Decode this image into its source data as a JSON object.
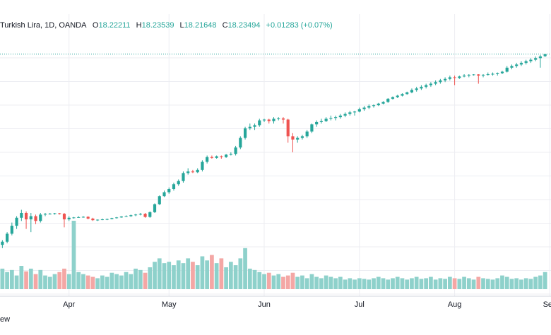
{
  "legend": {
    "symbol": "Turkish Lira, 1D, OANDA",
    "open_label": "O",
    "open": "18.22211",
    "high_label": "H",
    "high": "18.23539",
    "low_label": "L",
    "low": "18.21648",
    "close_label": "C",
    "close": "18.23494",
    "change": "+0.01283 (+0.07%)"
  },
  "brand_text": "ew",
  "colors": {
    "up": "#26a69a",
    "down": "#ef5350",
    "vol_up": "#8ed1cb",
    "vol_down": "#f4a7a5",
    "grid": "#ecedf2",
    "last_line": "#26a69a"
  },
  "chart_data": {
    "type": "candlestick",
    "title": "Turkish Lira, 1D, OANDA",
    "x_labels": [
      "Apr",
      "May",
      "Jun",
      "Jul",
      "Aug",
      "Sep"
    ],
    "x_label_index": [
      14,
      35,
      55,
      75,
      95,
      115
    ],
    "price_range": [
      17.05,
      18.3
    ],
    "volume_max": 100,
    "last_price": 18.23494,
    "candles": [
      [
        17.04,
        17.07,
        17.02,
        17.06,
        30
      ],
      [
        17.06,
        17.12,
        17.05,
        17.11,
        25
      ],
      [
        17.11,
        17.18,
        17.1,
        17.16,
        28
      ],
      [
        17.16,
        17.22,
        17.14,
        17.21,
        20
      ],
      [
        17.21,
        17.26,
        17.19,
        17.24,
        34
      ],
      [
        17.24,
        17.25,
        17.14,
        17.2,
        26
      ],
      [
        17.2,
        17.24,
        17.12,
        17.22,
        30
      ],
      [
        17.22,
        17.23,
        17.17,
        17.19,
        22
      ],
      [
        17.19,
        17.24,
        17.18,
        17.23,
        28
      ],
      [
        17.23,
        17.24,
        17.22,
        17.235,
        20
      ],
      [
        17.235,
        17.24,
        17.23,
        17.236,
        18
      ],
      [
        17.236,
        17.24,
        17.23,
        17.238,
        22
      ],
      [
        17.238,
        17.24,
        17.23,
        17.235,
        25
      ],
      [
        17.235,
        17.24,
        17.15,
        17.2,
        30
      ],
      [
        17.2,
        17.22,
        17.19,
        17.21,
        22
      ],
      [
        17.21,
        17.215,
        17.205,
        17.212,
        100
      ],
      [
        17.212,
        17.22,
        17.21,
        17.214,
        25
      ],
      [
        17.214,
        17.22,
        17.21,
        17.216,
        22
      ],
      [
        17.216,
        17.22,
        17.2,
        17.205,
        20
      ],
      [
        17.205,
        17.21,
        17.19,
        17.195,
        18
      ],
      [
        17.195,
        17.2,
        17.19,
        17.198,
        16
      ],
      [
        17.198,
        17.205,
        17.195,
        17.2,
        20
      ],
      [
        17.2,
        17.205,
        17.195,
        17.202,
        18
      ],
      [
        17.202,
        17.21,
        17.2,
        17.208,
        24
      ],
      [
        17.208,
        17.215,
        17.205,
        17.212,
        22
      ],
      [
        17.212,
        17.22,
        17.21,
        17.218,
        20
      ],
      [
        17.218,
        17.225,
        17.215,
        17.22,
        25
      ],
      [
        17.22,
        17.23,
        17.215,
        17.226,
        22
      ],
      [
        17.226,
        17.235,
        17.22,
        17.23,
        30
      ],
      [
        17.23,
        17.24,
        17.225,
        17.235,
        28
      ],
      [
        17.235,
        17.24,
        17.21,
        17.215,
        24
      ],
      [
        17.215,
        17.25,
        17.21,
        17.245,
        32
      ],
      [
        17.245,
        17.3,
        17.24,
        17.295,
        40
      ],
      [
        17.295,
        17.35,
        17.29,
        17.345,
        45
      ],
      [
        17.345,
        17.38,
        17.34,
        17.37,
        38
      ],
      [
        17.37,
        17.4,
        17.36,
        17.39,
        40
      ],
      [
        17.39,
        17.43,
        17.38,
        17.42,
        35
      ],
      [
        17.42,
        17.45,
        17.41,
        17.44,
        42
      ],
      [
        17.44,
        17.5,
        17.43,
        17.49,
        38
      ],
      [
        17.49,
        17.52,
        17.48,
        17.5,
        45
      ],
      [
        17.5,
        17.51,
        17.49,
        17.495,
        40
      ],
      [
        17.495,
        17.52,
        17.49,
        17.51,
        35
      ],
      [
        17.51,
        17.57,
        17.5,
        17.56,
        48
      ],
      [
        17.56,
        17.6,
        17.55,
        17.59,
        42
      ],
      [
        17.59,
        17.6,
        17.58,
        17.585,
        50
      ],
      [
        17.585,
        17.6,
        17.58,
        17.595,
        38
      ],
      [
        17.595,
        17.6,
        17.58,
        17.59,
        45
      ],
      [
        17.59,
        17.61,
        17.585,
        17.605,
        32
      ],
      [
        17.605,
        17.62,
        17.6,
        17.61,
        40
      ],
      [
        17.61,
        17.66,
        17.6,
        17.65,
        35
      ],
      [
        17.65,
        17.72,
        17.64,
        17.71,
        45
      ],
      [
        17.71,
        17.78,
        17.7,
        17.77,
        60
      ],
      [
        17.77,
        17.8,
        17.76,
        17.78,
        30
      ],
      [
        17.78,
        17.8,
        17.76,
        17.79,
        28
      ],
      [
        17.79,
        17.83,
        17.78,
        17.82,
        25
      ],
      [
        17.82,
        17.83,
        17.81,
        17.825,
        22
      ],
      [
        17.825,
        17.83,
        17.8,
        17.815,
        24
      ],
      [
        17.815,
        17.84,
        17.8,
        17.83,
        20
      ],
      [
        17.83,
        17.84,
        17.82,
        17.832,
        22
      ],
      [
        17.832,
        17.84,
        17.8,
        17.825,
        18
      ],
      [
        17.825,
        17.83,
        17.68,
        17.72,
        20
      ],
      [
        17.72,
        17.74,
        17.62,
        17.7,
        24
      ],
      [
        17.7,
        17.72,
        17.68,
        17.71,
        18
      ],
      [
        17.71,
        17.73,
        17.7,
        17.72,
        20
      ],
      [
        17.72,
        17.76,
        17.71,
        17.75,
        16
      ],
      [
        17.75,
        17.8,
        17.74,
        17.795,
        22
      ],
      [
        17.795,
        17.82,
        17.78,
        17.81,
        18
      ],
      [
        17.81,
        17.83,
        17.8,
        17.815,
        16
      ],
      [
        17.815,
        17.84,
        17.81,
        17.83,
        20
      ],
      [
        17.83,
        17.85,
        17.82,
        17.835,
        18
      ],
      [
        17.835,
        17.85,
        17.82,
        17.84,
        16
      ],
      [
        17.84,
        17.86,
        17.83,
        17.85,
        18
      ],
      [
        17.85,
        17.87,
        17.84,
        17.86,
        14
      ],
      [
        17.86,
        17.88,
        17.85,
        17.87,
        16
      ],
      [
        17.87,
        17.88,
        17.85,
        17.875,
        14
      ],
      [
        17.875,
        17.9,
        17.87,
        17.89,
        16
      ],
      [
        17.89,
        17.91,
        17.88,
        17.9,
        15
      ],
      [
        17.9,
        17.92,
        17.89,
        17.91,
        14
      ],
      [
        17.91,
        17.92,
        17.9,
        17.915,
        16
      ],
      [
        17.915,
        17.93,
        17.91,
        17.925,
        18
      ],
      [
        17.925,
        17.94,
        17.92,
        17.935,
        16
      ],
      [
        17.935,
        17.96,
        17.93,
        17.955,
        14
      ],
      [
        17.955,
        17.97,
        17.95,
        17.965,
        16
      ],
      [
        17.965,
        17.98,
        17.96,
        17.975,
        18
      ],
      [
        17.975,
        17.99,
        17.97,
        17.985,
        16
      ],
      [
        17.985,
        18.0,
        17.98,
        17.995,
        14
      ],
      [
        17.995,
        18.02,
        17.99,
        18.01,
        16
      ],
      [
        18.01,
        18.03,
        18.0,
        18.02,
        18
      ],
      [
        18.02,
        18.04,
        18.01,
        18.03,
        15
      ],
      [
        18.03,
        18.05,
        18.02,
        18.04,
        16
      ],
      [
        18.04,
        18.06,
        18.03,
        18.05,
        18
      ],
      [
        18.05,
        18.07,
        18.04,
        18.06,
        14
      ],
      [
        18.06,
        18.08,
        18.05,
        18.07,
        16
      ],
      [
        18.07,
        18.09,
        18.06,
        18.08,
        15
      ],
      [
        18.08,
        18.1,
        18.07,
        18.09,
        18
      ],
      [
        18.09,
        18.1,
        18.04,
        18.085,
        16
      ],
      [
        18.085,
        18.1,
        18.08,
        18.095,
        15
      ],
      [
        18.095,
        18.11,
        18.09,
        18.1,
        18
      ],
      [
        18.1,
        18.11,
        18.09,
        18.105,
        16
      ],
      [
        18.105,
        18.11,
        18.1,
        18.108,
        14
      ],
      [
        18.108,
        18.11,
        18.05,
        18.1,
        18
      ],
      [
        18.1,
        18.11,
        18.09,
        18.105,
        16
      ],
      [
        18.105,
        18.12,
        18.1,
        18.11,
        15
      ],
      [
        18.11,
        18.12,
        18.1,
        18.112,
        14
      ],
      [
        18.112,
        18.12,
        18.1,
        18.115,
        16
      ],
      [
        18.115,
        18.13,
        18.11,
        18.125,
        20
      ],
      [
        18.125,
        18.16,
        18.12,
        18.15,
        18
      ],
      [
        18.15,
        18.17,
        18.14,
        18.16,
        15
      ],
      [
        18.16,
        18.18,
        18.15,
        18.17,
        16
      ],
      [
        18.17,
        18.19,
        18.16,
        18.18,
        14
      ],
      [
        18.18,
        18.2,
        18.17,
        18.19,
        16
      ],
      [
        18.19,
        18.21,
        18.18,
        18.2,
        15
      ],
      [
        18.2,
        18.22,
        18.19,
        18.21,
        18
      ],
      [
        18.21,
        18.23,
        18.15,
        18.22,
        20
      ],
      [
        18.22211,
        18.23539,
        18.21648,
        18.23494,
        25
      ]
    ]
  }
}
